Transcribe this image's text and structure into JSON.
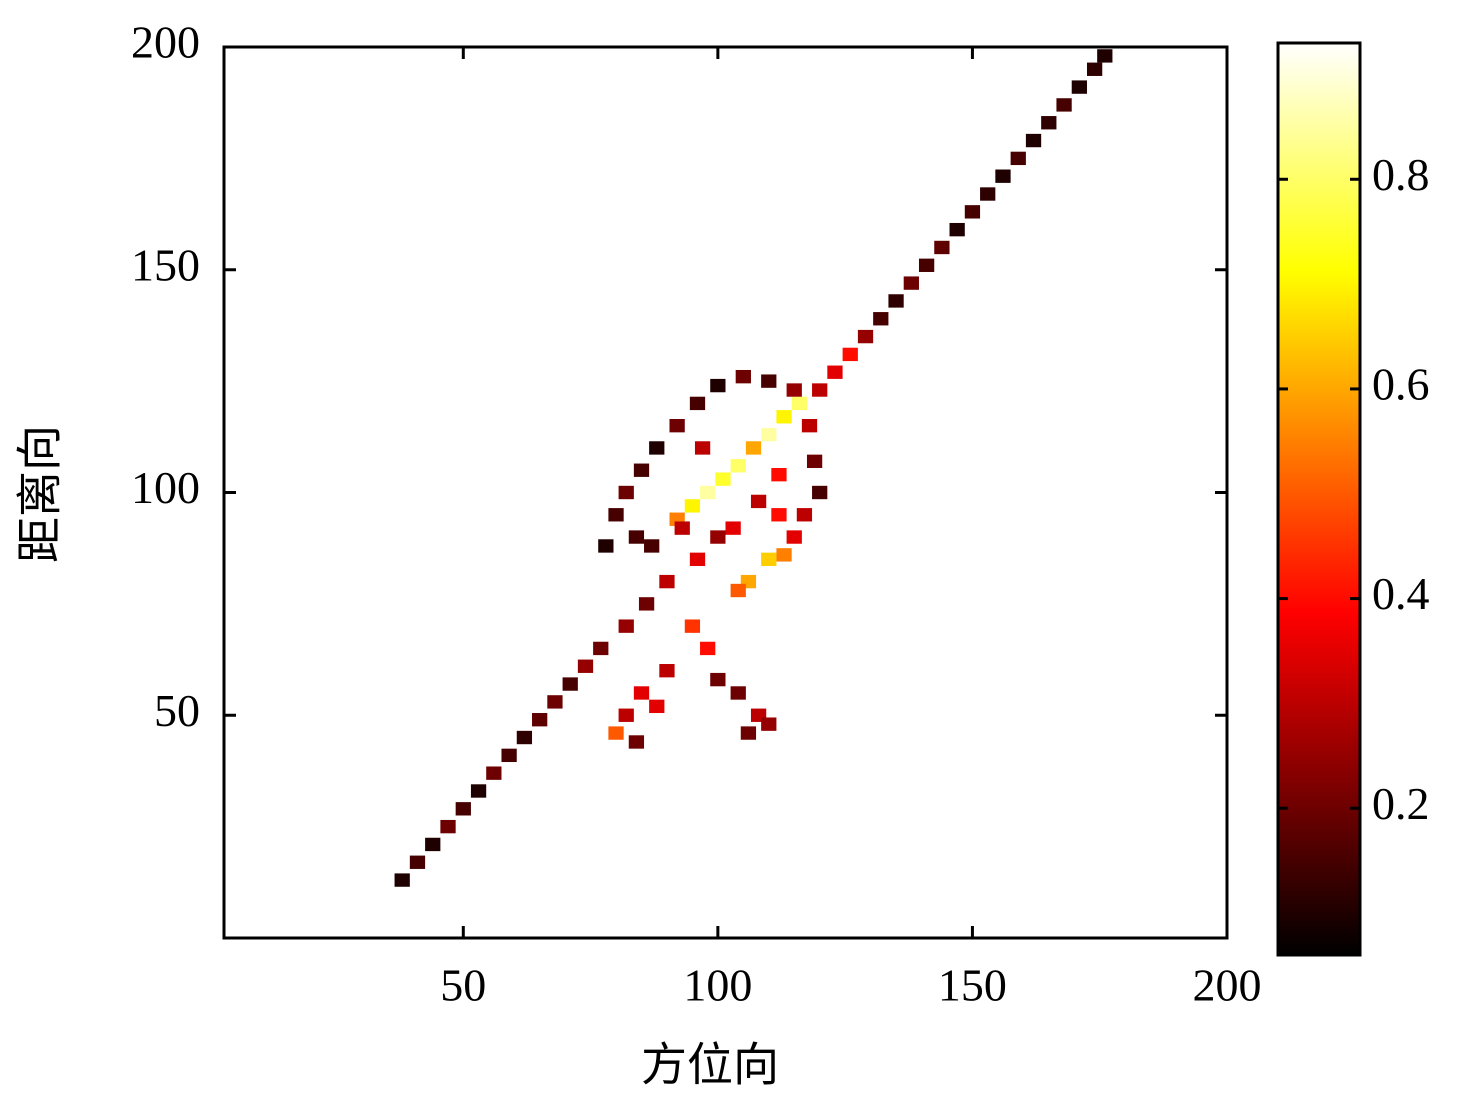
{
  "chart_data": {
    "type": "heatmap",
    "xlabel": "方位向",
    "ylabel": "距离向",
    "colormap": "hot",
    "xlim": [
      3,
      200
    ],
    "ylim": [
      0,
      200
    ],
    "xticks": [
      50,
      100,
      150,
      200
    ],
    "yticks": [
      50,
      100,
      150,
      200
    ],
    "clim": [
      0.06,
      0.93
    ],
    "cticks": [
      0.2,
      0.4,
      0.6,
      0.8
    ],
    "x": [
      38,
      41,
      44,
      47,
      50,
      53,
      56,
      59,
      62,
      65,
      68,
      71,
      74,
      77,
      120,
      123,
      126,
      129,
      132,
      135,
      138,
      141,
      144,
      147,
      150,
      153,
      156,
      159,
      162,
      165,
      168,
      171,
      174,
      176,
      92,
      95,
      98,
      101,
      104,
      107,
      110,
      113,
      116,
      110,
      113,
      106,
      104,
      80,
      78,
      82,
      85,
      88,
      92,
      96,
      100,
      105,
      110,
      115,
      118,
      119,
      120,
      117,
      115,
      112,
      108,
      100,
      96,
      90,
      86,
      82,
      95,
      98,
      90,
      85,
      82,
      80,
      84,
      88,
      100,
      104,
      108,
      110,
      106,
      87,
      93,
      103,
      112,
      97,
      84
    ],
    "y": [
      13,
      17,
      21,
      25,
      29,
      33,
      37,
      41,
      45,
      49,
      53,
      57,
      61,
      65,
      123,
      127,
      131,
      135,
      139,
      143,
      147,
      151,
      155,
      159,
      163,
      167,
      171,
      175,
      179,
      183,
      187,
      191,
      195,
      198,
      94,
      97,
      100,
      103,
      106,
      110,
      113,
      117,
      120,
      85,
      86,
      80,
      78,
      95,
      88,
      100,
      105,
      110,
      115,
      120,
      124,
      126,
      125,
      123,
      115,
      107,
      100,
      95,
      90,
      95,
      98,
      90,
      85,
      80,
      75,
      70,
      70,
      65,
      60,
      55,
      50,
      46,
      44,
      52,
      58,
      55,
      50,
      48,
      46,
      88,
      92,
      92,
      104,
      110,
      90
    ],
    "values": [
      0.1,
      0.15,
      0.1,
      0.2,
      0.15,
      0.1,
      0.2,
      0.15,
      0.12,
      0.18,
      0.2,
      0.15,
      0.25,
      0.2,
      0.3,
      0.35,
      0.4,
      0.25,
      0.15,
      0.12,
      0.2,
      0.15,
      0.18,
      0.1,
      0.15,
      0.12,
      0.1,
      0.15,
      0.1,
      0.12,
      0.15,
      0.1,
      0.12,
      0.1,
      0.55,
      0.7,
      0.85,
      0.75,
      0.8,
      0.6,
      0.85,
      0.7,
      0.8,
      0.65,
      0.55,
      0.6,
      0.5,
      0.15,
      0.1,
      0.2,
      0.15,
      0.1,
      0.2,
      0.15,
      0.1,
      0.2,
      0.15,
      0.25,
      0.3,
      0.2,
      0.15,
      0.3,
      0.35,
      0.4,
      0.3,
      0.25,
      0.35,
      0.3,
      0.2,
      0.25,
      0.45,
      0.4,
      0.3,
      0.35,
      0.3,
      0.5,
      0.2,
      0.35,
      0.2,
      0.2,
      0.3,
      0.25,
      0.2,
      0.15,
      0.3,
      0.35,
      0.4,
      0.3,
      0.15
    ]
  }
}
